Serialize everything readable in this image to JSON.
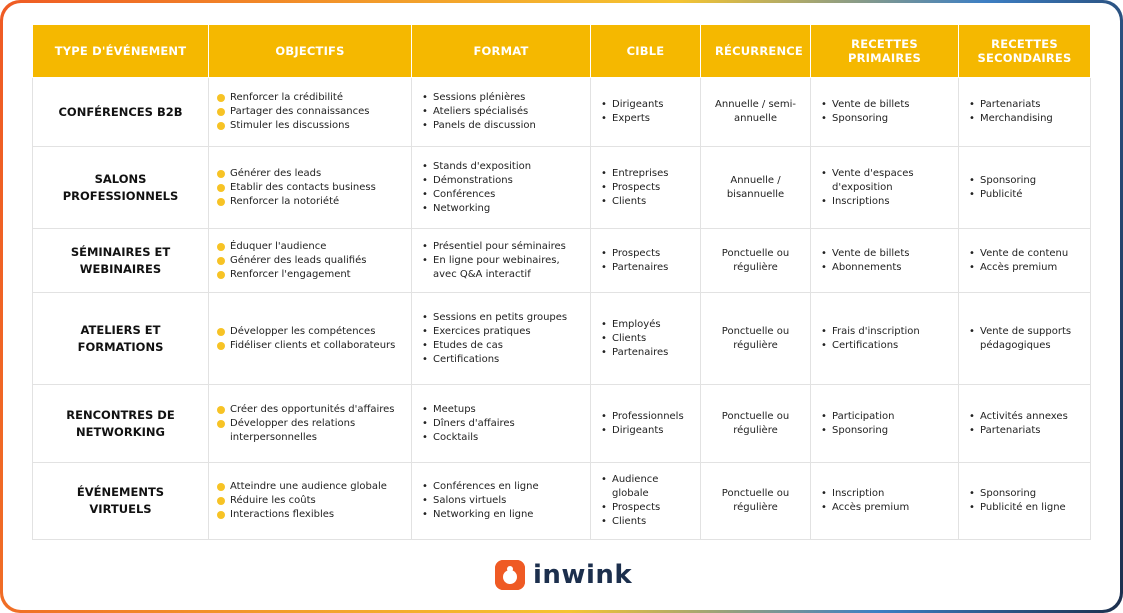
{
  "table": {
    "header": [
      "TYPE D'ÉVÉNEMENT",
      "OBJECTIFS",
      "FORMAT",
      "CIBLE",
      "RÉCURRENCE",
      "RECETTES PRIMAIRES",
      "RECETTES SECONDAIRES"
    ],
    "rows": [
      {
        "type": "CONFÉRENCES B2B",
        "objectives": [
          "Renforcer la crédibilité",
          "Partager des connaissances",
          "Stimuler les discussions"
        ],
        "format": [
          "Sessions plénières",
          "Ateliers spécialisés",
          "Panels de discussion"
        ],
        "audience": [
          "Dirigeants",
          "Experts"
        ],
        "recurrence": "Annuelle / semi-annuelle",
        "primary_revenue": [
          "Vente de billets",
          "Sponsoring"
        ],
        "secondary_revenue": [
          "Partenariats",
          "Merchandising"
        ]
      },
      {
        "type": "SALONS PROFESSIONNELS",
        "objectives": [
          "Générer des leads",
          "Etablir des contacts business",
          "Renforcer la notoriété"
        ],
        "format": [
          "Stands d'exposition",
          "Démonstrations",
          "Conférences",
          "Networking"
        ],
        "audience": [
          "Entreprises",
          "Prospects",
          "Clients"
        ],
        "recurrence": "Annuelle / bisannuelle",
        "primary_revenue": [
          "Vente d'espaces d'exposition",
          "Inscriptions"
        ],
        "secondary_revenue": [
          "Sponsoring",
          "Publicité"
        ]
      },
      {
        "type": "SÉMINAIRES ET WEBINAIRES",
        "objectives": [
          "Éduquer l'audience",
          "Générer des leads qualifiés",
          "Renforcer l'engagement"
        ],
        "format": [
          "Présentiel pour séminaires",
          "En ligne pour webinaires, avec Q&A interactif"
        ],
        "audience": [
          "Prospects",
          "Partenaires"
        ],
        "recurrence": "Ponctuelle ou régulière",
        "primary_revenue": [
          "Vente de billets",
          "Abonnements"
        ],
        "secondary_revenue": [
          "Vente de contenu",
          "Accès premium"
        ]
      },
      {
        "type": "ATELIERS ET FORMATIONS",
        "objectives": [
          "Développer les compétences",
          "Fidéliser clients et collaborateurs"
        ],
        "format": [
          "Sessions en petits groupes",
          "Exercices pratiques",
          "Etudes de cas",
          "Certifications"
        ],
        "audience": [
          "Employés",
          "Clients",
          "Partenaires"
        ],
        "recurrence": "Ponctuelle ou régulière",
        "primary_revenue": [
          "Frais d'inscription",
          "Certifications"
        ],
        "secondary_revenue": [
          "Vente de supports pédagogiques"
        ]
      },
      {
        "type": "RENCONTRES DE NETWORKING",
        "objectives": [
          "Créer des opportunités d'affaires",
          "Développer des relations interpersonnelles"
        ],
        "format": [
          "Meetups",
          "Dîners d'affaires",
          "Cocktails"
        ],
        "audience": [
          "Professionnels",
          "Dirigeants"
        ],
        "recurrence": "Ponctuelle ou régulière",
        "primary_revenue": [
          "Participation",
          "Sponsoring"
        ],
        "secondary_revenue": [
          "Activités annexes",
          "Partenariats"
        ]
      },
      {
        "type": "ÉVÉNEMENTS VIRTUELS",
        "objectives": [
          "Atteindre une audience globale",
          "Réduire les coûts",
          "Interactions flexibles"
        ],
        "format": [
          "Conférences en ligne",
          "Salons virtuels",
          "Networking en ligne"
        ],
        "audience": [
          "Audience globale",
          "Prospects",
          "Clients"
        ],
        "recurrence": "Ponctuelle ou régulière",
        "primary_revenue": [
          "Inscription",
          "Accès premium"
        ],
        "secondary_revenue": [
          "Sponsoring",
          "Publicité en ligne"
        ]
      }
    ]
  },
  "logo": {
    "text": "inwink"
  }
}
